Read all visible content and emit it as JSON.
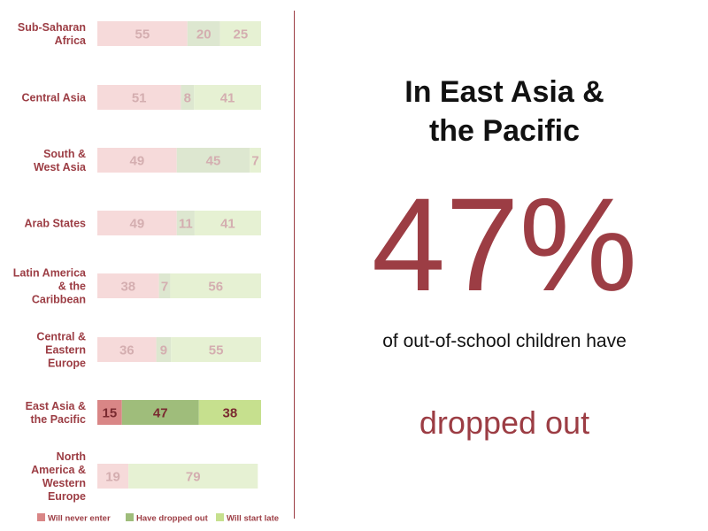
{
  "chart_data": {
    "type": "bar",
    "stacked": true,
    "orientation": "horizontal",
    "highlight_region": "East Asia & the Pacific",
    "regions": [
      {
        "label": [
          "Sub-Saharan",
          "Africa"
        ],
        "values": [
          55,
          20,
          25
        ]
      },
      {
        "label": [
          "Central Asia"
        ],
        "values": [
          51,
          8,
          41
        ]
      },
      {
        "label": [
          "South &",
          "West Asia"
        ],
        "values": [
          49,
          45,
          7
        ]
      },
      {
        "label": [
          "Arab States"
        ],
        "values": [
          49,
          11,
          41
        ]
      },
      {
        "label": [
          "Latin America",
          "& the",
          "Caribbean"
        ],
        "values": [
          38,
          7,
          56
        ]
      },
      {
        "label": [
          "Central &",
          "Eastern",
          "Europe"
        ],
        "values": [
          36,
          9,
          55
        ]
      },
      {
        "label": [
          "East Asia &",
          "the Pacific"
        ],
        "values": [
          15,
          47,
          38
        ],
        "highlight": true
      },
      {
        "label": [
          "North",
          "America &",
          "Western",
          "Europe"
        ],
        "values": [
          19,
          0,
          79
        ]
      }
    ],
    "series": [
      {
        "name": "Will never enter",
        "color": "#d98686",
        "muted_color": "#f6dada"
      },
      {
        "name": "Have dropped out",
        "color": "#9fbd7b",
        "muted_color": "#dde7d0"
      },
      {
        "name": "Will start late",
        "color": "#c6e08e",
        "muted_color": "#e6f1d3"
      }
    ],
    "xlim": [
      0,
      100
    ],
    "legend_position": "bottom"
  },
  "callout": {
    "headline_line1": "In East Asia &",
    "headline_line2": "the Pacific",
    "percent": "47%",
    "subline": "of out-of-school children have",
    "outcome": "dropped out"
  },
  "colors": {
    "accent": "#9c3d44",
    "text": "#111111",
    "muted_value_text": "#d4aeb0",
    "strong_value_text": "#7a2a30"
  }
}
